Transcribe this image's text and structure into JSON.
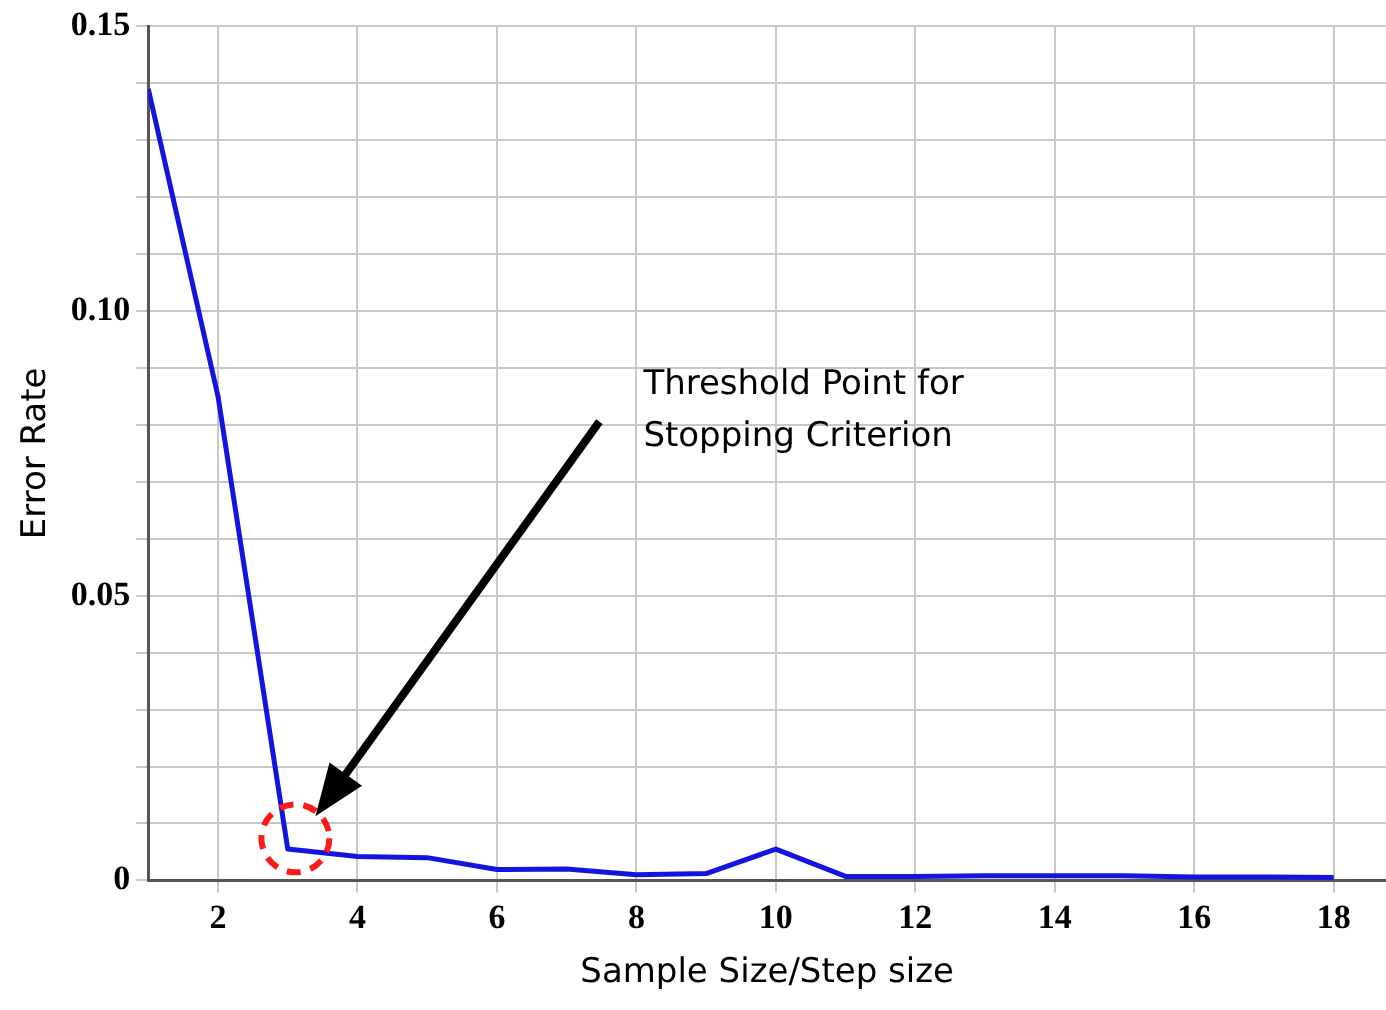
{
  "chart_data": {
    "type": "line",
    "xlabel": "Sample Size/Step size",
    "ylabel": "Error Rate",
    "x": [
      1,
      2,
      3,
      4,
      5,
      6,
      7,
      8,
      9,
      10,
      11,
      12,
      13,
      14,
      15,
      16,
      17,
      18
    ],
    "series": [
      {
        "color": "#1414e0",
        "values": [
          0.139,
          0.085,
          0.0055,
          0.0042,
          0.004,
          0.0019,
          0.002,
          0.001,
          0.0012,
          0.0055,
          0.0007,
          0.0007,
          0.0008,
          0.0008,
          0.0008,
          0.0006,
          0.0006,
          0.0005
        ]
      }
    ],
    "xlim": [
      1,
      18.75
    ],
    "xticks": [
      2,
      4,
      6,
      8,
      10,
      12,
      14,
      16,
      18
    ],
    "ylim": [
      0,
      0.15
    ],
    "yticks": [
      0,
      {
        "value": 0.01,
        "label": null
      },
      {
        "value": 0.02,
        "label": null
      },
      {
        "value": 0.03,
        "label": null
      },
      {
        "value": 0.04,
        "label": null
      },
      {
        "value": 0.05,
        "label": "0.05"
      },
      {
        "value": 0.06,
        "label": null
      },
      {
        "value": 0.07,
        "label": null
      },
      {
        "value": 0.08,
        "label": null
      },
      {
        "value": 0.09,
        "label": null
      },
      {
        "value": 0.1,
        "label": "0.10"
      },
      {
        "value": 0.11,
        "label": null
      },
      {
        "value": 0.12,
        "label": null
      },
      {
        "value": 0.13,
        "label": null
      },
      {
        "value": 0.14,
        "label": null
      },
      {
        "value": 0.15,
        "label": "0.15"
      }
    ],
    "grid": true,
    "legend": false,
    "marker": "none",
    "line_style": "solid",
    "annotations": [
      "Threshold Point for Stopping Criterion"
    ]
  }
}
